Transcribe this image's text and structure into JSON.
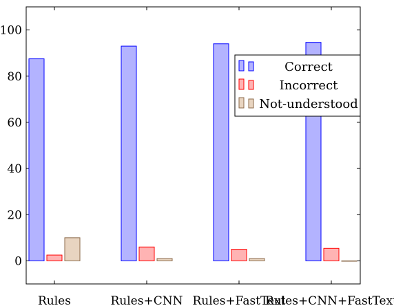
{
  "chart_data": {
    "type": "bar",
    "categories": [
      "Rules",
      "Rules+CNN",
      "Rules+FastText",
      "Rules+CNN+FastText"
    ],
    "series": [
      {
        "name": "Correct",
        "values": [
          87.5,
          93,
          94,
          94.6
        ],
        "fill": "#b3b3ff",
        "stroke": "#0000ff"
      },
      {
        "name": "Incorrect",
        "values": [
          2.5,
          6,
          5,
          5.4
        ],
        "fill": "#ffb3b3",
        "stroke": "#ff0000"
      },
      {
        "name": "Not-understood",
        "values": [
          10,
          1,
          1,
          0
        ],
        "fill": "#e8d4c0",
        "stroke": "#8b6a4a"
      }
    ],
    "ylim": [
      -10,
      110
    ],
    "yticks": [
      0,
      20,
      40,
      60,
      80,
      100
    ],
    "xlabel": "",
    "ylabel": "",
    "title": "",
    "legend_position": "top-right",
    "grid": false
  }
}
